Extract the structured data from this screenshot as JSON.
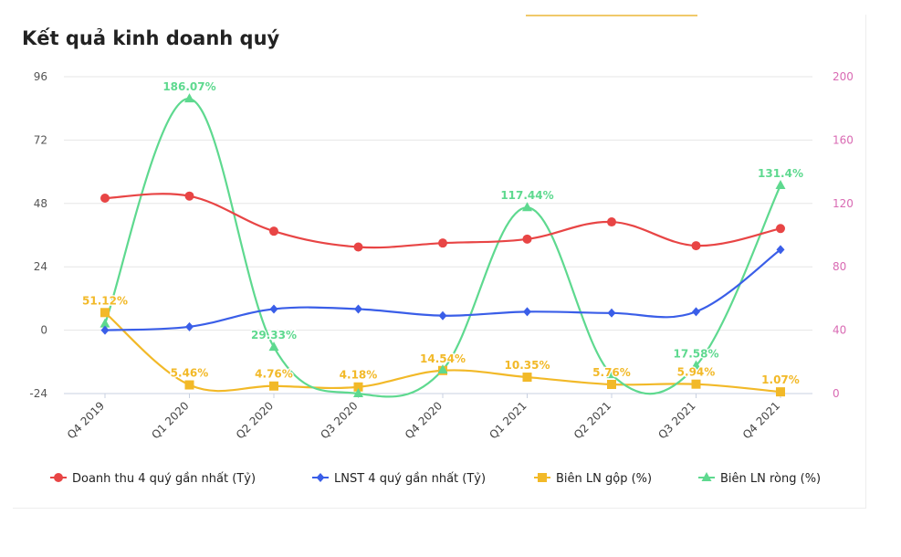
{
  "chart_data": {
    "type": "line",
    "title": "Kết quả kinh doanh quý",
    "categories": [
      "Q4 2019",
      "Q1 2020",
      "Q2 2020",
      "Q3 2020",
      "Q4 2020",
      "Q1 2021",
      "Q2 2021",
      "Q3 2021",
      "Q4 2021"
    ],
    "y_left": {
      "ticks": [
        "96",
        "72",
        "48",
        "24",
        "0",
        "-24"
      ],
      "range": [
        -24,
        96
      ]
    },
    "y_right": {
      "ticks": [
        "200",
        "160",
        "120",
        "80",
        "40",
        "0"
      ],
      "range": [
        0,
        200
      ]
    },
    "grid": true,
    "legend_position": "bottom",
    "series": [
      {
        "name": "Doanh thu 4 quý gần nhất (Tỷ)",
        "axis": "left",
        "marker": "circle",
        "color": "#e84545",
        "values": [
          50.0,
          50.8,
          37.5,
          31.5,
          33.0,
          34.5,
          41.0,
          32.0,
          38.5
        ],
        "labels": []
      },
      {
        "name": "LNST 4 quý gần nhất (Tỷ)",
        "axis": "left",
        "marker": "diamond",
        "color": "#3a5ee8",
        "values": [
          0.0,
          1.3,
          8.0,
          8.0,
          5.5,
          7.0,
          6.5,
          7.0,
          30.5
        ],
        "labels": []
      },
      {
        "name": "Biên LN gộp (%)",
        "axis": "right",
        "marker": "square",
        "color": "#f2b928",
        "values": [
          51.12,
          5.46,
          4.76,
          4.18,
          14.54,
          10.35,
          5.76,
          5.94,
          1.07
        ],
        "labels": [
          "51.12%",
          "5.46%",
          "4.76%",
          "4.18%",
          "14.54%",
          "10.35%",
          "5.76%",
          "5.94%",
          "1.07%"
        ]
      },
      {
        "name": "Biên LN ròng (%)",
        "axis": "right",
        "marker": "triangle",
        "color": "#5ed98f",
        "values": [
          44.0,
          186.07,
          29.33,
          0.0,
          15.0,
          117.44,
          12.0,
          17.58,
          131.4
        ],
        "labels": [
          "",
          "186.07%",
          "29.33%",
          "",
          "",
          "117.44%",
          "",
          "17.58%",
          "131.4%"
        ]
      }
    ],
    "colors": {
      "left_axis_text": "#555555",
      "right_axis_text": "#d96ab3",
      "grid": "#e6e6e6"
    }
  }
}
